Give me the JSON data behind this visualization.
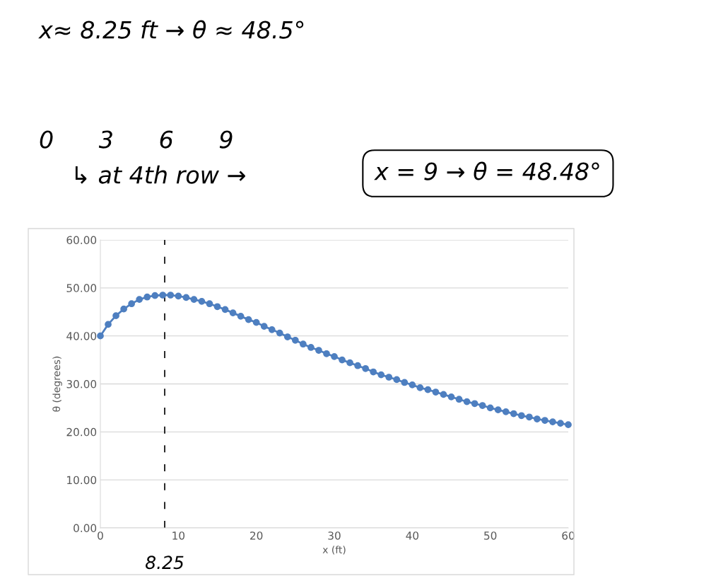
{
  "chart_data": {
    "type": "line",
    "xlabel": "x (ft)",
    "ylabel": "θ (degrees)",
    "annotations": [
      "x≈ 8.25 ft → θ ≈ 48.5°",
      "0      3      6      9",
      "↳ at 4th row →",
      "x = 9 → θ = 48.48°"
    ],
    "x": [
      0,
      1,
      2,
      3,
      4,
      5,
      6,
      7,
      8,
      9,
      10,
      11,
      12,
      13,
      14,
      15,
      16,
      17,
      18,
      19,
      20,
      21,
      22,
      23,
      24,
      25,
      26,
      27,
      28,
      29,
      30,
      31,
      32,
      33,
      34,
      35,
      36,
      37,
      38,
      39,
      40,
      41,
      42,
      43,
      44,
      45,
      46,
      47,
      48,
      49,
      50,
      51,
      52,
      53,
      54,
      55,
      56,
      57,
      58,
      59,
      60
    ],
    "series": [
      {
        "color": "#4e7fc0",
        "values": [
          40.0,
          42.4,
          44.2,
          45.6,
          46.7,
          47.6,
          48.1,
          48.4,
          48.5,
          48.5,
          48.3,
          48.0,
          47.6,
          47.2,
          46.7,
          46.1,
          45.5,
          44.8,
          44.1,
          43.4,
          42.8,
          42.0,
          41.3,
          40.6,
          39.8,
          39.1,
          38.3,
          37.6,
          37.0,
          36.3,
          35.7,
          35.0,
          34.4,
          33.8,
          33.2,
          32.5,
          31.9,
          31.4,
          30.9,
          30.3,
          29.8,
          29.2,
          28.8,
          28.3,
          27.8,
          27.3,
          26.8,
          26.3,
          25.9,
          25.5,
          25.0,
          24.6,
          24.2,
          23.8,
          23.4,
          23.1,
          22.7,
          22.4,
          22.1,
          21.8,
          21.5
        ]
      }
    ],
    "xlim": [
      0,
      60
    ],
    "xticks": [
      0,
      10,
      20,
      30,
      40,
      50,
      60
    ],
    "ylim": [
      0,
      60
    ],
    "yticks": [
      {
        "value": 0,
        "label": "0.00"
      },
      {
        "value": 10,
        "label": "10.00"
      },
      {
        "value": 20,
        "label": "20.00"
      },
      {
        "value": 30,
        "label": "30.00"
      },
      {
        "value": 40,
        "label": "40.00"
      },
      {
        "value": 50,
        "label": "50.00"
      },
      {
        "value": 60,
        "label": "60.00"
      }
    ],
    "ref_lines": [
      {
        "axis": "x",
        "value": 8.25,
        "label": "8.25",
        "color": "#000000",
        "line_style": "dashed"
      }
    ],
    "grid": "y",
    "marker": "circle",
    "line_style": "solid"
  }
}
